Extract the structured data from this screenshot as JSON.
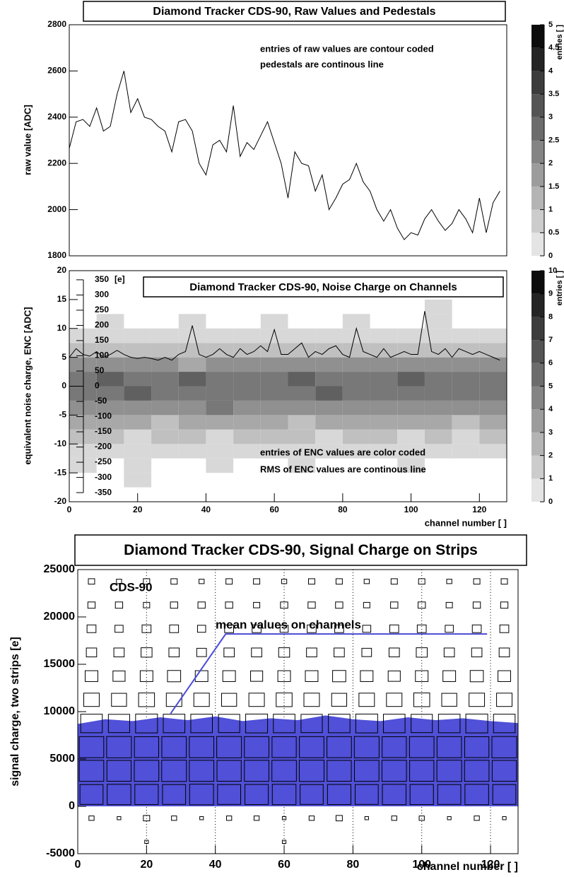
{
  "chart_data": [
    {
      "type": "line",
      "title": "Diamond Tracker CDS-90, Raw Values and Pedestals",
      "ylabel": "raw value [ADC]",
      "annotations": [
        "entries of raw values are contour coded",
        "pedestals are continous line"
      ],
      "xlim": [
        0,
        128
      ],
      "ylim": [
        1800,
        2800
      ],
      "yticks": [
        1800,
        2000,
        2200,
        2400,
        2600,
        2800
      ],
      "colorbar": {
        "label": "entries [ ]",
        "lim": [
          0,
          5
        ],
        "ticks": [
          0,
          0.5,
          1,
          1.5,
          2,
          2.5,
          3,
          3.5,
          4,
          4.5,
          5
        ]
      },
      "color": "#000000",
      "x": [
        0,
        2,
        4,
        6,
        8,
        10,
        12,
        14,
        16,
        18,
        20,
        22,
        24,
        26,
        28,
        30,
        32,
        34,
        36,
        38,
        40,
        42,
        44,
        46,
        48,
        50,
        52,
        54,
        56,
        58,
        60,
        62,
        64,
        66,
        68,
        70,
        72,
        74,
        76,
        78,
        80,
        82,
        84,
        86,
        88,
        90,
        92,
        94,
        96,
        98,
        100,
        102,
        104,
        106,
        108,
        110,
        112,
        114,
        116,
        118,
        120,
        122,
        124,
        126
      ],
      "values": [
        2265,
        2380,
        2390,
        2360,
        2440,
        2340,
        2360,
        2500,
        2600,
        2420,
        2480,
        2400,
        2390,
        2360,
        2340,
        2250,
        2380,
        2390,
        2340,
        2200,
        2150,
        2280,
        2300,
        2250,
        2450,
        2230,
        2290,
        2260,
        2320,
        2380,
        2290,
        2200,
        2050,
        2250,
        2200,
        2190,
        2080,
        2150,
        2000,
        2050,
        2110,
        2130,
        2200,
        2120,
        2080,
        2000,
        1950,
        2000,
        1920,
        1870,
        1900,
        1890,
        1960,
        2000,
        1950,
        1910,
        1940,
        2000,
        1960,
        1900,
        2050,
        1900,
        2030,
        2080
      ]
    },
    {
      "type": "heatmap",
      "title": "Diamond Tracker CDS-90, Noise Charge on Channels",
      "ylabel": "equivalent noise charge, ENC [ADC]",
      "xlabel": "channel number [ ]",
      "y2label": "[e]",
      "annotations": [
        "entries of ENC values are color coded",
        "RMS of ENC values are continous line"
      ],
      "xlim": [
        0,
        128
      ],
      "xticks": [
        0,
        20,
        40,
        60,
        80,
        100,
        120
      ],
      "ylim": [
        -20,
        20
      ],
      "yticks": [
        -20,
        -15,
        -10,
        -5,
        0,
        5,
        10,
        15,
        20
      ],
      "y2lim": [
        -380,
        380
      ],
      "y2ticks": [
        -350,
        -300,
        -250,
        -200,
        -150,
        -100,
        -50,
        0,
        50,
        100,
        150,
        200,
        250,
        300,
        350
      ],
      "colorbar": {
        "label": "entries [ ]",
        "lim": [
          0,
          10
        ],
        "ticks": [
          0,
          1,
          2,
          3,
          4,
          5,
          6,
          7,
          8,
          9,
          10
        ]
      },
      "xbins": [
        0,
        8,
        16,
        24,
        32,
        40,
        48,
        56,
        64,
        72,
        80,
        88,
        96,
        104,
        112,
        120,
        128
      ],
      "ybins": [
        -20,
        -17.5,
        -15,
        -12.5,
        -10,
        -7.5,
        -5,
        -2.5,
        0,
        2.5,
        5,
        7.5,
        10,
        12.5,
        15,
        17.5,
        20
      ],
      "z": [
        [
          0,
          0,
          0,
          0,
          0,
          0,
          0,
          0,
          0,
          0,
          0,
          0,
          0,
          0,
          0,
          0
        ],
        [
          0,
          0,
          1,
          0,
          0,
          0,
          0,
          0,
          0,
          0,
          0,
          0,
          0,
          0,
          0,
          0
        ],
        [
          1,
          0,
          1,
          0,
          0,
          1,
          0,
          0,
          1,
          0,
          0,
          0,
          1,
          0,
          0,
          0
        ],
        [
          1,
          1,
          1,
          1,
          1,
          1,
          1,
          1,
          1,
          1,
          1,
          1,
          1,
          1,
          1,
          1
        ],
        [
          2,
          2,
          1,
          2,
          2,
          1,
          2,
          2,
          2,
          1,
          2,
          2,
          1,
          2,
          1,
          2
        ],
        [
          3,
          3,
          3,
          2,
          3,
          3,
          3,
          3,
          2,
          3,
          3,
          3,
          3,
          3,
          2,
          3
        ],
        [
          4,
          4,
          4,
          4,
          4,
          5,
          4,
          4,
          4,
          4,
          4,
          4,
          4,
          4,
          4,
          4
        ],
        [
          5,
          5,
          6,
          5,
          5,
          5,
          5,
          5,
          5,
          6,
          5,
          5,
          5,
          5,
          5,
          5
        ],
        [
          5,
          6,
          5,
          5,
          6,
          5,
          5,
          5,
          6,
          5,
          5,
          5,
          6,
          5,
          5,
          5
        ],
        [
          4,
          4,
          4,
          4,
          3,
          4,
          4,
          4,
          4,
          4,
          4,
          4,
          4,
          4,
          4,
          4
        ],
        [
          2,
          2,
          2,
          2,
          2,
          2,
          2,
          2,
          2,
          2,
          2,
          2,
          2,
          2,
          2,
          2
        ],
        [
          1,
          1,
          1,
          1,
          1,
          1,
          1,
          1,
          1,
          1,
          1,
          1,
          1,
          1,
          1,
          1
        ],
        [
          0,
          1,
          0,
          0,
          1,
          0,
          0,
          1,
          0,
          0,
          1,
          0,
          0,
          1,
          0,
          0
        ],
        [
          0,
          0,
          0,
          0,
          0,
          0,
          0,
          0,
          0,
          0,
          0,
          0,
          0,
          1,
          0,
          0
        ],
        [
          0,
          0,
          0,
          0,
          0,
          0,
          0,
          0,
          0,
          0,
          0,
          0,
          0,
          0,
          0,
          0
        ],
        [
          0,
          0,
          0,
          0,
          0,
          0,
          0,
          0,
          0,
          0,
          0,
          0,
          0,
          0,
          0,
          0
        ]
      ],
      "color": "#000000",
      "x": [
        0,
        2,
        4,
        6,
        8,
        10,
        12,
        14,
        16,
        18,
        20,
        22,
        24,
        26,
        28,
        30,
        32,
        34,
        36,
        38,
        40,
        42,
        44,
        46,
        48,
        50,
        52,
        54,
        56,
        58,
        60,
        62,
        64,
        66,
        68,
        70,
        72,
        74,
        76,
        78,
        80,
        82,
        84,
        86,
        88,
        90,
        92,
        94,
        96,
        98,
        100,
        102,
        104,
        106,
        108,
        110,
        112,
        114,
        116,
        118,
        120,
        122,
        124,
        126
      ],
      "values": [
        5.0,
        6.5,
        5.5,
        5.2,
        6.0,
        5.0,
        5.5,
        6.2,
        5.5,
        5.0,
        4.8,
        5.0,
        4.8,
        4.5,
        5.0,
        4.5,
        5.5,
        6.0,
        10.5,
        5.5,
        5.0,
        5.5,
        6.5,
        5.5,
        5.0,
        6.5,
        5.5,
        6.0,
        7.0,
        6.0,
        9.8,
        5.5,
        5.5,
        6.5,
        7.5,
        5.0,
        6.0,
        5.5,
        6.5,
        7.0,
        5.5,
        5.0,
        10.0,
        6.0,
        5.5,
        5.0,
        6.5,
        5.0,
        5.5,
        6.0,
        5.5,
        5.5,
        13.0,
        6.0,
        5.5,
        6.5,
        5.0,
        6.5,
        6.0,
        5.5,
        6.0,
        5.5,
        5.0,
        4.5
      ]
    },
    {
      "type": "boxmap",
      "title": "Diamond Tracker CDS-90, Signal Charge on Strips",
      "ylabel": "signal charge, two strips [e]",
      "xlabel": "channel number [ ]",
      "annotations": [
        "CDS-90",
        "mean values on channels"
      ],
      "xlim": [
        0,
        128
      ],
      "xticks": [
        0,
        20,
        40,
        60,
        80,
        100,
        120
      ],
      "grid": true,
      "ylim": [
        -5000,
        25000
      ],
      "yticks": [
        -5000,
        0,
        5000,
        10000,
        15000,
        20000,
        25000
      ],
      "xbins": [
        0,
        8,
        16,
        24,
        32,
        40,
        48,
        56,
        64,
        72,
        80,
        88,
        96,
        104,
        112,
        120,
        128
      ],
      "ybins": [
        -5000,
        -2500,
        0,
        2500,
        5000,
        7500,
        10000,
        12500,
        15000,
        17500,
        20000,
        22500,
        25000
      ],
      "z": [
        [
          0,
          0,
          1,
          0,
          0,
          0,
          0,
          1,
          0,
          0,
          0,
          0,
          0,
          0,
          0,
          0
        ],
        [
          2,
          1,
          3,
          2,
          1,
          2,
          2,
          1,
          2,
          3,
          1,
          2,
          2,
          1,
          2,
          1
        ],
        [
          40,
          42,
          41,
          40,
          43,
          40,
          41,
          42,
          40,
          41,
          40,
          42,
          41,
          40,
          42,
          40
        ],
        [
          45,
          44,
          45,
          46,
          45,
          44,
          45,
          45,
          46,
          44,
          45,
          45,
          44,
          46,
          45,
          44
        ],
        [
          45,
          46,
          44,
          45,
          45,
          46,
          45,
          44,
          45,
          45,
          46,
          44,
          45,
          45,
          44,
          46
        ],
        [
          35,
          34,
          36,
          35,
          35,
          34,
          36,
          35,
          34,
          35,
          36,
          35,
          34,
          35,
          36,
          35
        ],
        [
          18,
          17,
          19,
          18,
          18,
          17,
          18,
          19,
          18,
          17,
          18,
          18,
          19,
          17,
          18,
          18
        ],
        [
          12,
          11,
          12,
          13,
          12,
          12,
          11,
          12,
          12,
          13,
          12,
          11,
          12,
          12,
          13,
          12
        ],
        [
          8,
          8,
          9,
          8,
          7,
          8,
          8,
          9,
          8,
          8,
          7,
          8,
          9,
          8,
          8,
          8
        ],
        [
          6,
          5,
          6,
          6,
          5,
          6,
          6,
          5,
          6,
          6,
          5,
          6,
          6,
          5,
          6,
          6
        ],
        [
          4,
          4,
          3,
          4,
          4,
          4,
          3,
          4,
          4,
          4,
          3,
          4,
          4,
          3,
          4,
          4
        ],
        [
          3,
          2,
          3,
          3,
          2,
          3,
          3,
          2,
          3,
          3,
          2,
          3,
          3,
          2,
          3,
          3
        ]
      ],
      "area": {
        "color": "#5050d8",
        "x": [
          0,
          8,
          16,
          24,
          32,
          40,
          48,
          56,
          64,
          72,
          80,
          88,
          96,
          104,
          112,
          120,
          128
        ],
        "values": [
          8700,
          9200,
          9000,
          9400,
          9100,
          9500,
          9000,
          9300,
          9100,
          9600,
          9200,
          9000,
          9400,
          9100,
          9300,
          9000,
          8800
        ]
      },
      "mean": {
        "color": "#4a4ad8",
        "x": [
          27,
          43,
          119
        ],
        "values": [
          9800,
          18200,
          18200
        ]
      }
    }
  ]
}
